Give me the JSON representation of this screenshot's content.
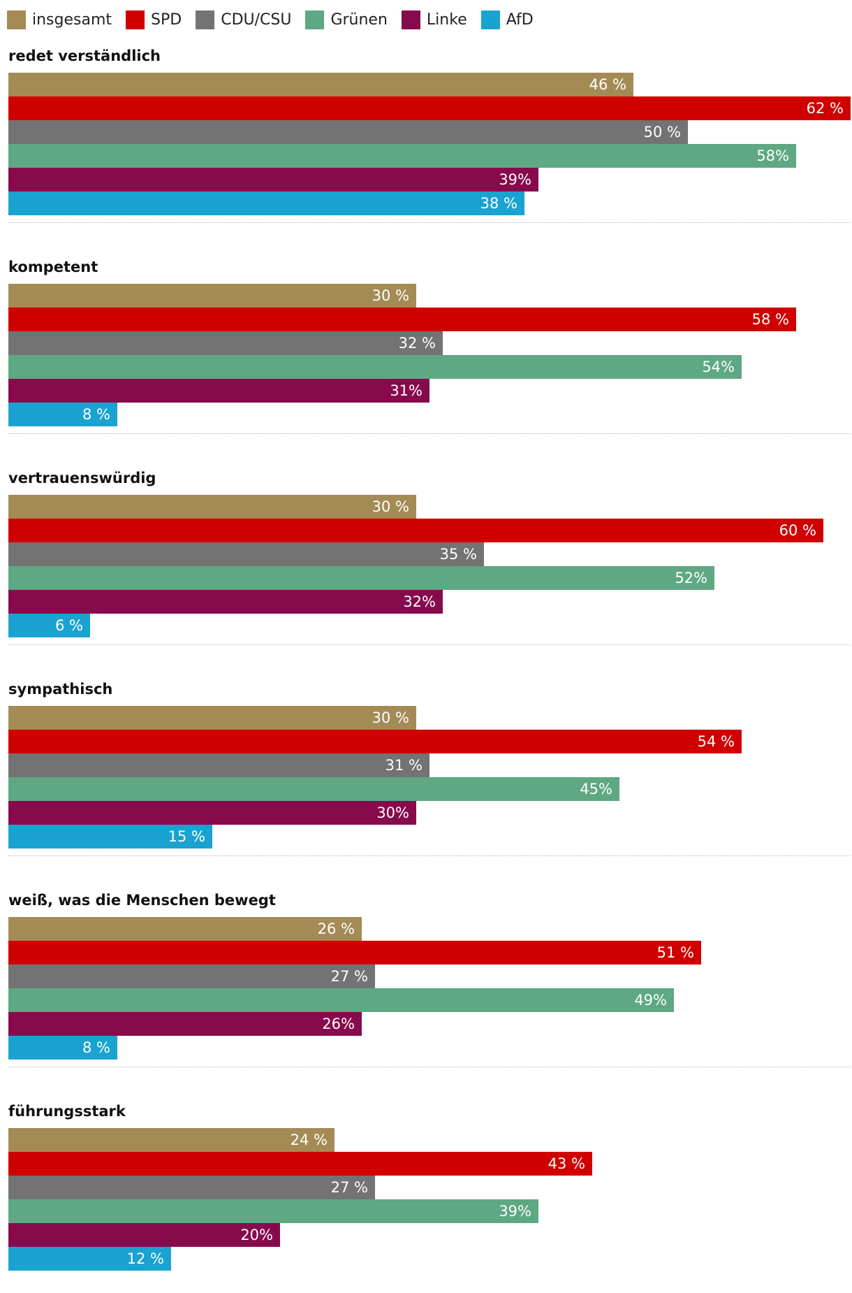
{
  "chart_data": {
    "type": "bar",
    "orientation": "horizontal",
    "xlim": [
      0,
      62
    ],
    "grid": false,
    "legend_position": "top-left",
    "series": [
      {
        "name": "insgesamt",
        "color": "#a48b55"
      },
      {
        "name": "SPD",
        "color": "#d10000"
      },
      {
        "name": "CDU/CSU",
        "color": "#737373"
      },
      {
        "name": "Grünen",
        "color": "#5ea883"
      },
      {
        "name": "Linke",
        "color": "#870b4c"
      },
      {
        "name": "AfD",
        "color": "#1aa3d0"
      }
    ],
    "groups": [
      {
        "label": "redet verständlich",
        "values": [
          46,
          62,
          50,
          58,
          39,
          38
        ],
        "value_labels": [
          "46 %",
          "62 %",
          "50 %",
          "58%",
          "39%",
          "38 %"
        ]
      },
      {
        "label": "kompetent",
        "values": [
          30,
          58,
          32,
          54,
          31,
          8
        ],
        "value_labels": [
          "30 %",
          "58 %",
          "32 %",
          "54%",
          "31%",
          "8 %"
        ]
      },
      {
        "label": "vertrauenswürdig",
        "values": [
          30,
          60,
          35,
          52,
          32,
          6
        ],
        "value_labels": [
          "30 %",
          "60 %",
          "35 %",
          "52%",
          "32%",
          "6 %"
        ]
      },
      {
        "label": "sympathisch",
        "values": [
          30,
          54,
          31,
          45,
          30,
          15
        ],
        "value_labels": [
          "30 %",
          "54 %",
          "31 %",
          "45%",
          "30%",
          "15 %"
        ]
      },
      {
        "label": "weiß, was die Menschen bewegt",
        "values": [
          26,
          51,
          27,
          49,
          26,
          8
        ],
        "value_labels": [
          "26 %",
          "51 %",
          "27 %",
          "49%",
          "26%",
          "8 %"
        ]
      },
      {
        "label": "führungsstark",
        "values": [
          24,
          43,
          27,
          39,
          20,
          12
        ],
        "value_labels": [
          "24 %",
          "43 %",
          "27 %",
          "39%",
          "20%",
          "12 %"
        ]
      }
    ]
  }
}
